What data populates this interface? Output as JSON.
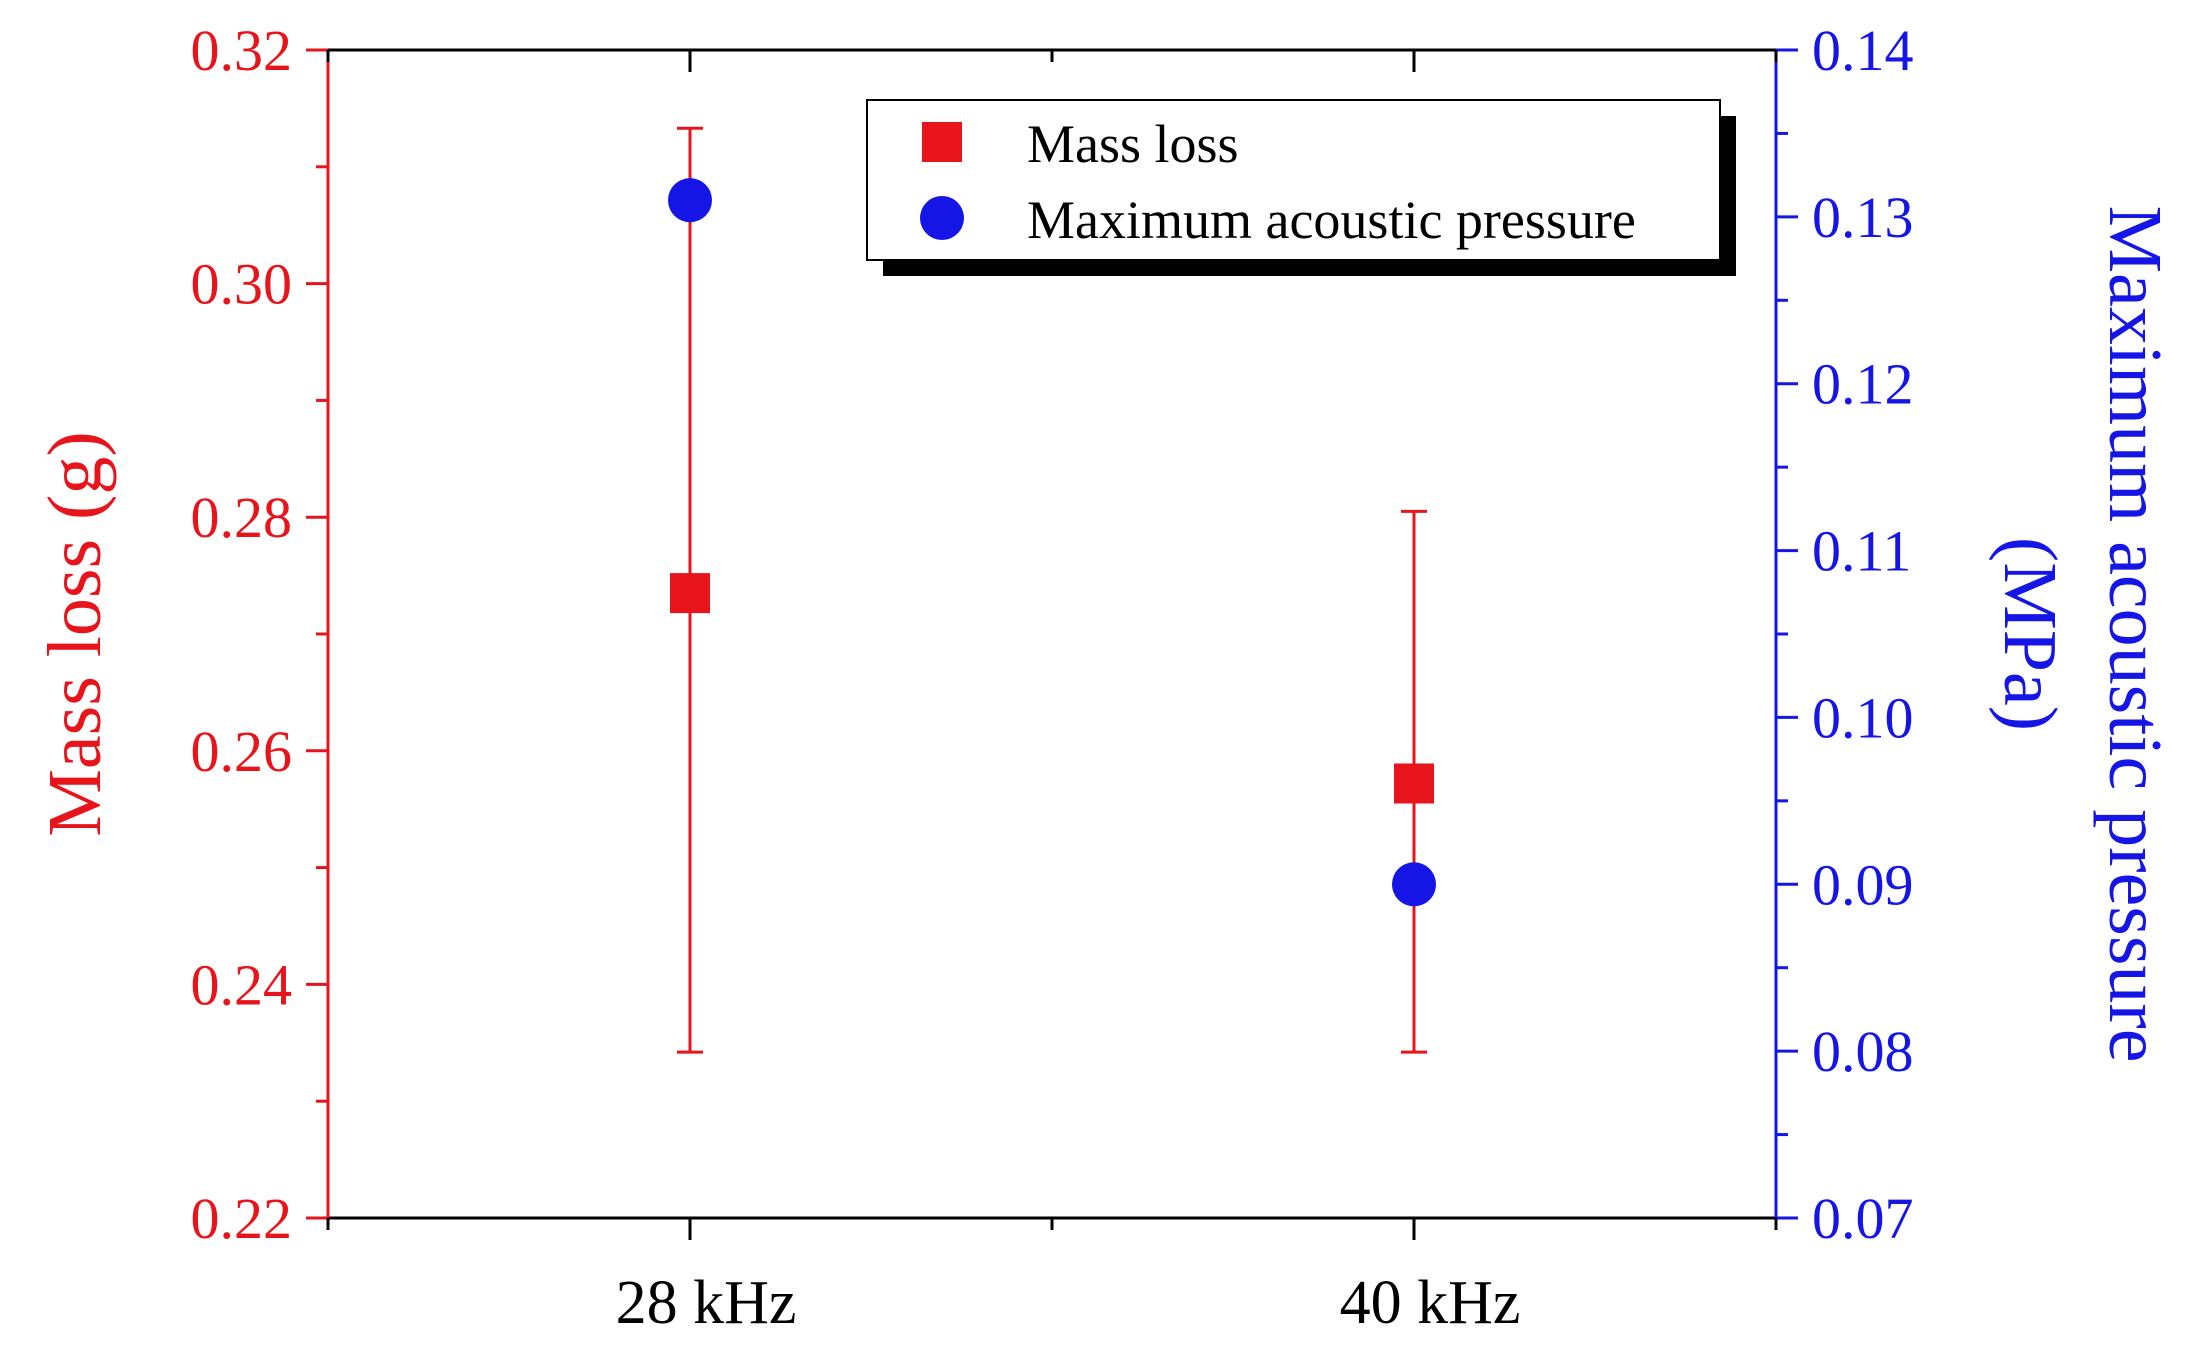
{
  "chart_data": {
    "type": "scatter",
    "categories": [
      "28 kHz",
      "40 kHz"
    ],
    "left_axis": {
      "label": "Mass loss (g)",
      "range": [
        0.22,
        0.32
      ],
      "ticks": [
        "0.22",
        "0.24",
        "0.26",
        "0.28",
        "0.30",
        "0.32"
      ],
      "color": "#e8141b"
    },
    "right_axis": {
      "label_line1": "Maximum acoustic pressure",
      "label_line2": "(MPa)",
      "range": [
        0.07,
        0.14
      ],
      "ticks": [
        "0.07",
        "0.08",
        "0.09",
        "0.10",
        "0.11",
        "0.12",
        "0.13",
        "0.14"
      ],
      "color": "#1515e6"
    },
    "series": [
      {
        "name": "Mass loss",
        "axis": "left",
        "marker": "square",
        "color": "#e8141b",
        "values": [
          0.2735,
          0.2572
        ],
        "error_low": [
          0.2342,
          0.2342
        ],
        "error_high": [
          0.3133,
          0.2805
        ]
      },
      {
        "name": "Maximum acoustic pressure",
        "axis": "right",
        "marker": "circle",
        "color": "#1515e6",
        "values": [
          0.131,
          0.09
        ]
      }
    ],
    "legend_position": "top-right"
  }
}
